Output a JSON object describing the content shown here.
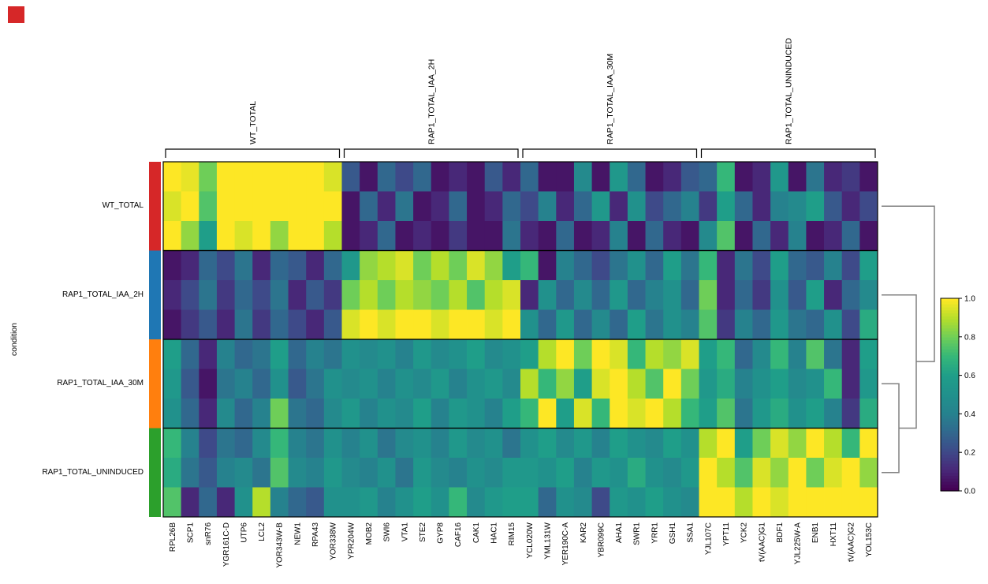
{
  "figure": {
    "background": "#ffffff",
    "corner_marker_color": "#d62728"
  },
  "chart_data": {
    "type": "heatmap",
    "colormap": "viridis",
    "vmin": 0.0,
    "vmax": 1.0,
    "title": "",
    "xlabel": "",
    "ylabel": "condition",
    "grid": false,
    "legend_position": "right",
    "colorbar": {
      "ticks": [
        1.0,
        0.8,
        0.6,
        0.4,
        0.2,
        0.0
      ]
    },
    "rows_per_group": 3,
    "row_groups": [
      {
        "label": "WT_TOTAL",
        "color": "#d62728",
        "rows": 3
      },
      {
        "label": "RAP1_TOTAL_IAA_2H",
        "color": "#1f77b4",
        "rows": 3
      },
      {
        "label": "RAP1_TOTAL_IAA_30M",
        "color": "#ff7f0e",
        "rows": 3
      },
      {
        "label": "RAP1_TOTAL_UNINDUCED",
        "color": "#2ca02c",
        "rows": 3
      }
    ],
    "col_groups": [
      {
        "label": "WT_TOTAL",
        "genes": [
          "RPL26B",
          "SCP1",
          "snR76",
          "YGR161C-D",
          "UTP6",
          "LCL2",
          "YOR343W-B",
          "NEW1",
          "RPA43",
          "YOR338W"
        ]
      },
      {
        "label": "RAP1_TOTAL_IAA_2H",
        "genes": [
          "YPR204W",
          "MOB2",
          "SWI6",
          "VTA1",
          "STE2",
          "GYP8",
          "CAF16",
          "CAK1",
          "HAC1",
          "RIM15"
        ]
      },
      {
        "label": "RAP1_TOTAL_IAA_30M",
        "genes": [
          "YCL020W",
          "YML131W",
          "YER190C-A",
          "KAR2",
          "YBR099C",
          "AHA1",
          "SWR1",
          "YRR1",
          "GSH1",
          "SSA1"
        ]
      },
      {
        "label": "RAP1_TOTAL_UNINDUCED",
        "genes": [
          "YJL107C",
          "YPT11",
          "YCK2",
          "tV(AAC)G1",
          "BDF1",
          "YJL225W-A",
          "ENB1",
          "HXT11",
          "tV(AAC)G2",
          "YOL153C"
        ]
      }
    ],
    "values": [
      [
        1.0,
        0.97,
        0.8,
        1.0,
        1.0,
        1.0,
        1.0,
        1.0,
        1.0,
        0.95,
        0.25,
        0.05,
        0.3,
        0.2,
        0.3,
        0.05,
        0.1,
        0.05,
        0.25,
        0.1,
        0.3,
        0.05,
        0.05,
        0.45,
        0.05,
        0.55,
        0.3,
        0.05,
        0.1,
        0.25,
        0.3,
        0.7,
        0.05,
        0.1,
        0.55,
        0.05,
        0.35,
        0.1,
        0.15,
        0.05
      ],
      [
        0.95,
        1.0,
        0.75,
        1.0,
        1.0,
        1.0,
        1.0,
        1.0,
        1.0,
        1.0,
        0.05,
        0.3,
        0.1,
        0.35,
        0.05,
        0.1,
        0.3,
        0.05,
        0.1,
        0.3,
        0.2,
        0.4,
        0.1,
        0.3,
        0.55,
        0.1,
        0.5,
        0.2,
        0.3,
        0.4,
        0.15,
        0.6,
        0.3,
        0.1,
        0.4,
        0.45,
        0.6,
        0.25,
        0.1,
        0.2
      ],
      [
        1.0,
        0.85,
        0.6,
        1.0,
        0.95,
        1.0,
        0.85,
        1.0,
        1.0,
        0.9,
        0.05,
        0.1,
        0.3,
        0.05,
        0.1,
        0.05,
        0.15,
        0.05,
        0.05,
        0.35,
        0.1,
        0.05,
        0.3,
        0.05,
        0.1,
        0.4,
        0.05,
        0.3,
        0.1,
        0.05,
        0.45,
        0.75,
        0.05,
        0.3,
        0.1,
        0.4,
        0.05,
        0.1,
        0.3,
        0.05
      ],
      [
        0.05,
        0.1,
        0.3,
        0.2,
        0.35,
        0.1,
        0.3,
        0.25,
        0.1,
        0.3,
        0.55,
        0.85,
        0.9,
        0.95,
        0.8,
        0.9,
        0.8,
        0.95,
        0.85,
        0.6,
        0.7,
        0.05,
        0.4,
        0.3,
        0.2,
        0.35,
        0.5,
        0.3,
        0.6,
        0.35,
        0.7,
        0.1,
        0.35,
        0.2,
        0.6,
        0.3,
        0.25,
        0.4,
        0.2,
        0.6
      ],
      [
        0.1,
        0.2,
        0.35,
        0.15,
        0.3,
        0.2,
        0.35,
        0.1,
        0.25,
        0.15,
        0.8,
        0.9,
        0.8,
        0.9,
        0.85,
        0.8,
        0.9,
        0.75,
        0.9,
        0.95,
        0.1,
        0.5,
        0.3,
        0.45,
        0.3,
        0.55,
        0.3,
        0.4,
        0.5,
        0.3,
        0.8,
        0.1,
        0.3,
        0.15,
        0.5,
        0.25,
        0.6,
        0.1,
        0.3,
        0.45
      ],
      [
        0.05,
        0.15,
        0.25,
        0.1,
        0.35,
        0.15,
        0.3,
        0.2,
        0.1,
        0.25,
        0.95,
        1.0,
        0.95,
        1.0,
        1.0,
        0.95,
        1.0,
        1.0,
        0.95,
        1.0,
        0.5,
        0.3,
        0.55,
        0.3,
        0.45,
        0.3,
        0.6,
        0.35,
        0.5,
        0.4,
        0.75,
        0.15,
        0.4,
        0.3,
        0.55,
        0.35,
        0.3,
        0.5,
        0.2,
        0.65
      ],
      [
        0.6,
        0.3,
        0.1,
        0.4,
        0.3,
        0.35,
        0.6,
        0.3,
        0.4,
        0.35,
        0.5,
        0.45,
        0.5,
        0.4,
        0.55,
        0.45,
        0.5,
        0.6,
        0.45,
        0.5,
        0.6,
        0.9,
        1.0,
        0.8,
        1.0,
        0.95,
        0.7,
        0.9,
        0.85,
        0.95,
        0.6,
        0.7,
        0.3,
        0.45,
        0.7,
        0.4,
        0.75,
        0.35,
        0.1,
        0.6
      ],
      [
        0.55,
        0.25,
        0.05,
        0.35,
        0.4,
        0.3,
        0.5,
        0.25,
        0.35,
        0.5,
        0.45,
        0.5,
        0.4,
        0.5,
        0.45,
        0.55,
        0.4,
        0.5,
        0.55,
        0.45,
        0.9,
        0.7,
        0.85,
        0.6,
        0.95,
        1.0,
        0.9,
        0.75,
        1.0,
        0.8,
        0.55,
        0.65,
        0.4,
        0.5,
        0.6,
        0.45,
        0.5,
        0.7,
        0.1,
        0.55
      ],
      [
        0.5,
        0.3,
        0.1,
        0.45,
        0.3,
        0.4,
        0.8,
        0.35,
        0.3,
        0.45,
        0.55,
        0.4,
        0.5,
        0.45,
        0.6,
        0.4,
        0.55,
        0.5,
        0.4,
        0.6,
        0.7,
        1.0,
        0.6,
        0.95,
        0.7,
        1.0,
        0.95,
        1.0,
        0.9,
        0.7,
        0.6,
        0.75,
        0.35,
        0.55,
        0.65,
        0.5,
        0.6,
        0.4,
        0.15,
        0.65
      ],
      [
        0.7,
        0.4,
        0.2,
        0.35,
        0.3,
        0.45,
        0.7,
        0.4,
        0.35,
        0.5,
        0.4,
        0.5,
        0.35,
        0.45,
        0.5,
        0.4,
        0.55,
        0.45,
        0.5,
        0.35,
        0.5,
        0.6,
        0.45,
        0.55,
        0.4,
        0.6,
        0.5,
        0.45,
        0.6,
        0.5,
        0.9,
        1.0,
        0.6,
        0.8,
        0.95,
        0.85,
        1.0,
        0.9,
        0.7,
        1.0
      ],
      [
        0.65,
        0.35,
        0.25,
        0.4,
        0.45,
        0.35,
        0.75,
        0.45,
        0.4,
        0.55,
        0.45,
        0.4,
        0.5,
        0.35,
        0.55,
        0.45,
        0.4,
        0.5,
        0.45,
        0.55,
        0.55,
        0.5,
        0.6,
        0.4,
        0.55,
        0.5,
        0.65,
        0.5,
        0.45,
        0.55,
        1.0,
        0.9,
        0.75,
        0.95,
        0.85,
        1.0,
        0.8,
        0.95,
        1.0,
        0.85
      ],
      [
        0.75,
        0.1,
        0.3,
        0.1,
        0.5,
        0.9,
        0.4,
        0.3,
        0.25,
        0.5,
        0.5,
        0.55,
        0.4,
        0.5,
        0.6,
        0.5,
        0.7,
        0.45,
        0.55,
        0.6,
        0.6,
        0.3,
        0.5,
        0.45,
        0.2,
        0.55,
        0.5,
        0.6,
        0.5,
        0.45,
        1.0,
        1.0,
        0.9,
        1.0,
        0.95,
        1.0,
        1.0,
        1.0,
        1.0,
        1.0
      ]
    ],
    "dendrogram": {
      "side": "right",
      "color": "#808080",
      "merges": [
        [
          "RAP1_TOTAL_IAA_30M",
          "RAP1_TOTAL_UNINDUCED"
        ],
        [
          "RAP1_TOTAL_IAA_2H",
          "RAP1_TOTAL_IAA_30M+RAP1_TOTAL_UNINDUCED"
        ],
        [
          "WT_TOTAL",
          "RAP1_TOTAL_IAA_2H+RAP1_TOTAL_IAA_30M+RAP1_TOTAL_UNINDUCED"
        ]
      ]
    }
  }
}
